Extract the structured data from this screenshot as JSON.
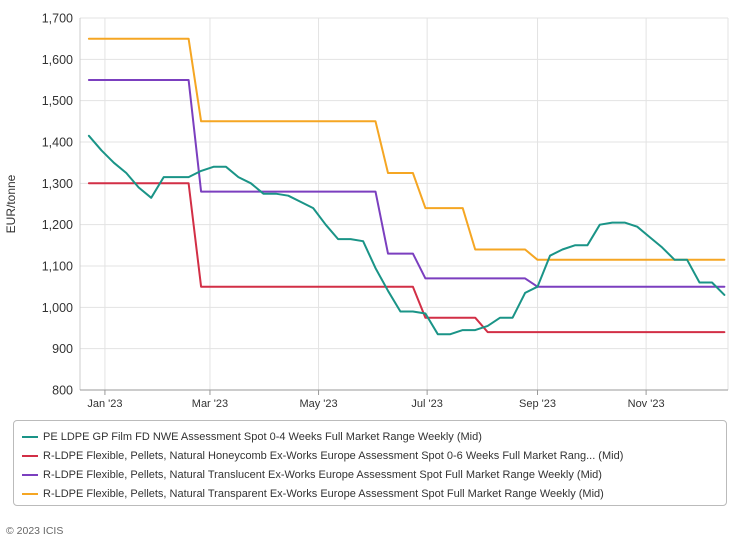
{
  "chart_data": {
    "type": "line",
    "ylabel": "EUR/tonne",
    "ylim": [
      800,
      1700
    ],
    "yticks": [
      "800",
      "900",
      "1,000",
      "1,100",
      "1,200",
      "1,300",
      "1,400",
      "1,500",
      "1,600",
      "1,700"
    ],
    "xlim": [
      "2023-01-01",
      "2023-12-31"
    ],
    "xticks": [
      {
        "label": "Jan '23",
        "date": "2023-01-15"
      },
      {
        "label": "Mar '23",
        "date": "2023-03-15"
      },
      {
        "label": "May '23",
        "date": "2023-05-15"
      },
      {
        "label": "Jul '23",
        "date": "2023-07-15"
      },
      {
        "label": "Sep '23",
        "date": "2023-09-15"
      },
      {
        "label": "Nov '23",
        "date": "2023-11-15"
      }
    ],
    "grid": true,
    "legend_position": "bottom",
    "series": [
      {
        "name": "PE LDPE GP Film FD NWE Assessment Spot 0-4 Weeks Full Market Range Weekly (Mid)",
        "color": "#1a9487",
        "step": false,
        "points": [
          [
            "2023-01-06",
            1415
          ],
          [
            "2023-01-13",
            1380
          ],
          [
            "2023-01-20",
            1350
          ],
          [
            "2023-01-27",
            1325
          ],
          [
            "2023-02-03",
            1290
          ],
          [
            "2023-02-10",
            1265
          ],
          [
            "2023-02-17",
            1315
          ],
          [
            "2023-02-24",
            1315
          ],
          [
            "2023-03-03",
            1315
          ],
          [
            "2023-03-10",
            1330
          ],
          [
            "2023-03-17",
            1340
          ],
          [
            "2023-03-24",
            1340
          ],
          [
            "2023-03-31",
            1315
          ],
          [
            "2023-04-07",
            1300
          ],
          [
            "2023-04-14",
            1275
          ],
          [
            "2023-04-21",
            1275
          ],
          [
            "2023-04-28",
            1270
          ],
          [
            "2023-05-05",
            1255
          ],
          [
            "2023-05-12",
            1240
          ],
          [
            "2023-05-19",
            1200
          ],
          [
            "2023-05-26",
            1165
          ],
          [
            "2023-06-02",
            1165
          ],
          [
            "2023-06-09",
            1160
          ],
          [
            "2023-06-16",
            1095
          ],
          [
            "2023-06-23",
            1040
          ],
          [
            "2023-06-30",
            990
          ],
          [
            "2023-07-07",
            990
          ],
          [
            "2023-07-14",
            985
          ],
          [
            "2023-07-21",
            935
          ],
          [
            "2023-07-28",
            935
          ],
          [
            "2023-08-04",
            945
          ],
          [
            "2023-08-11",
            945
          ],
          [
            "2023-08-18",
            955
          ],
          [
            "2023-08-25",
            975
          ],
          [
            "2023-09-01",
            975
          ],
          [
            "2023-09-08",
            1035
          ],
          [
            "2023-09-15",
            1050
          ],
          [
            "2023-09-22",
            1125
          ],
          [
            "2023-09-29",
            1140
          ],
          [
            "2023-10-06",
            1150
          ],
          [
            "2023-10-13",
            1150
          ],
          [
            "2023-10-20",
            1200
          ],
          [
            "2023-10-27",
            1205
          ],
          [
            "2023-11-03",
            1205
          ],
          [
            "2023-11-10",
            1195
          ],
          [
            "2023-11-17",
            1170
          ],
          [
            "2023-11-24",
            1145
          ],
          [
            "2023-12-01",
            1115
          ],
          [
            "2023-12-08",
            1115
          ],
          [
            "2023-12-15",
            1060
          ],
          [
            "2023-12-22",
            1060
          ],
          [
            "2023-12-29",
            1030
          ]
        ]
      },
      {
        "name": "R-LDPE Flexible, Pellets, Natural Honeycomb Ex-Works Europe Assessment Spot 0-6 Weeks Full Market Rang... (Mid)",
        "color": "#d22f46",
        "step": true,
        "points": [
          [
            "2023-01-06",
            1300
          ],
          [
            "2023-03-03",
            1300
          ],
          [
            "2023-03-10",
            1050
          ],
          [
            "2023-07-07",
            1050
          ],
          [
            "2023-07-14",
            975
          ],
          [
            "2023-08-11",
            975
          ],
          [
            "2023-08-18",
            940
          ],
          [
            "2023-12-29",
            940
          ]
        ]
      },
      {
        "name": "R-LDPE Flexible, Pellets, Natural Translucent Ex-Works Europe Assessment Spot Full Market Range Weekly (Mid)",
        "color": "#7b3fbf",
        "step": true,
        "points": [
          [
            "2023-01-06",
            1550
          ],
          [
            "2023-03-03",
            1550
          ],
          [
            "2023-03-10",
            1280
          ],
          [
            "2023-06-16",
            1280
          ],
          [
            "2023-06-23",
            1130
          ],
          [
            "2023-07-07",
            1130
          ],
          [
            "2023-07-14",
            1070
          ],
          [
            "2023-09-08",
            1070
          ],
          [
            "2023-09-15",
            1050
          ],
          [
            "2023-12-29",
            1050
          ]
        ]
      },
      {
        "name": "R-LDPE Flexible, Pellets, Natural Transparent Ex-Works Europe Assessment Spot Full Market Range Weekly (Mid)",
        "color": "#f5a623",
        "step": true,
        "points": [
          [
            "2023-01-06",
            1650
          ],
          [
            "2023-03-03",
            1650
          ],
          [
            "2023-03-10",
            1450
          ],
          [
            "2023-06-16",
            1450
          ],
          [
            "2023-06-23",
            1325
          ],
          [
            "2023-07-07",
            1325
          ],
          [
            "2023-07-14",
            1240
          ],
          [
            "2023-08-04",
            1240
          ],
          [
            "2023-08-11",
            1140
          ],
          [
            "2023-09-08",
            1140
          ],
          [
            "2023-09-15",
            1115
          ],
          [
            "2023-12-29",
            1115
          ]
        ]
      }
    ]
  },
  "footer": "© 2023 ICIS"
}
